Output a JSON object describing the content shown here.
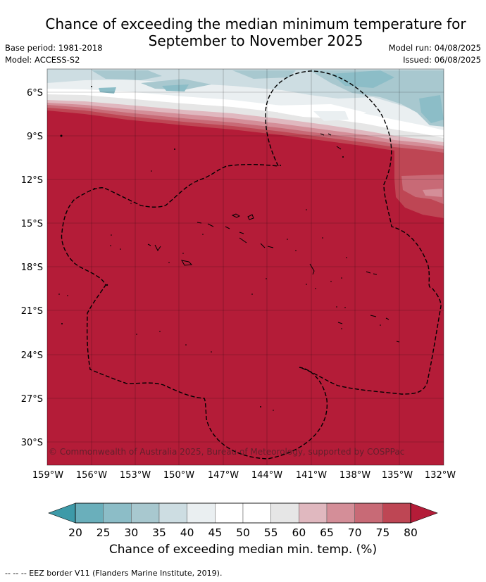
{
  "header": {
    "title_line1": "Chance of exceeding the median minimum temperature for",
    "title_line2": "September to November 2025",
    "base_period": "Base period: 1981-2018",
    "model": "Model: ACCESS-S2",
    "model_run": "Model run: 04/08/2025",
    "issued": "Issued: 06/08/2025"
  },
  "map": {
    "lat_labels": [
      "6°S",
      "9°S",
      "12°S",
      "15°S",
      "18°S",
      "21°S",
      "24°S",
      "27°S",
      "30°S"
    ],
    "lon_labels": [
      "159°W",
      "156°W",
      "153°W",
      "150°W",
      "147°W",
      "144°W",
      "141°W",
      "138°W",
      "135°W",
      "132°W"
    ],
    "copyright": "© Commonwealth of Australia 2025, Bureau of Meteorology, supported by COSPPac",
    "land_color": "#b41c38"
  },
  "colorbar": {
    "ticks": [
      "20",
      "25",
      "30",
      "35",
      "40",
      "45",
      "50",
      "55",
      "60",
      "65",
      "70",
      "75",
      "80"
    ],
    "colors": [
      "#3d9aa8",
      "#6aafbb",
      "#8cbdc7",
      "#a8c8cf",
      "#cddde2",
      "#eaeff1",
      "#ffffff",
      "#ffffff",
      "#e6e6e6",
      "#e0b8bf",
      "#d48e98",
      "#c86a76",
      "#be4654",
      "#b41c38"
    ],
    "label": "Chance of exceeding median min. temp. (%)"
  },
  "footer": {
    "legend_text": "--  --  -- EEZ border V11 (Flanders Marine Institute, 2019)."
  }
}
